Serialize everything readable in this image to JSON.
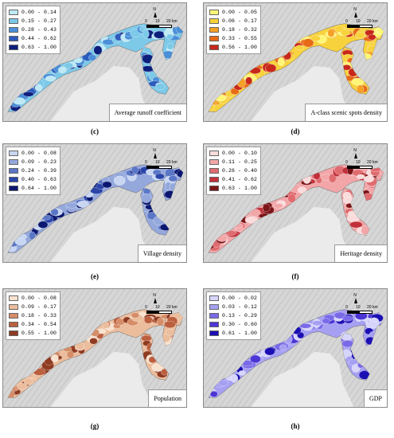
{
  "panels": [
    {
      "id": "c",
      "tag": "(c)",
      "variable": "Average runoff coefficient",
      "colors": {
        "ramp": [
          "#bfe9f4",
          "#7cc9e8",
          "#4a8fd8",
          "#2c5bbd",
          "#0d1f7c"
        ]
      },
      "legend": [
        "0.00 - 0.14",
        "0.15 - 0.27",
        "0.28 - 0.43",
        "0.44 - 0.62",
        "0.63 - 1.00"
      ]
    },
    {
      "id": "d",
      "tag": "(d)",
      "variable": "A-class scenic spots density",
      "colors": {
        "ramp": [
          "#fff678",
          "#f8d23c",
          "#f4a126",
          "#e86a17",
          "#c8281a"
        ]
      },
      "legend": [
        "0.00 - 0.05",
        "0.06 - 0.17",
        "0.18 - 0.32",
        "0.33 - 0.55",
        "0.56 - 1.00"
      ]
    },
    {
      "id": "e",
      "tag": "(e)",
      "variable": "Village density",
      "colors": {
        "ramp": [
          "#c9d6f2",
          "#94a8dc",
          "#5a76c6",
          "#2a44a8",
          "#0b1770"
        ]
      },
      "legend": [
        "0.00 - 0.08",
        "0.09 - 0.23",
        "0.24 - 0.39",
        "0.40 - 0.63",
        "0.64 - 1.00"
      ]
    },
    {
      "id": "f",
      "tag": "(f)",
      "variable": "Heritage density",
      "colors": {
        "ramp": [
          "#fadcdc",
          "#f2a6a8",
          "#e06b6f",
          "#c2313a",
          "#7c1518"
        ]
      },
      "legend": [
        "0.00 - 0.10",
        "0.11 - 0.25",
        "0.26 - 0.40",
        "0.41 - 0.62",
        "0.63 - 1.00"
      ]
    },
    {
      "id": "g",
      "tag": "(g)",
      "variable": "Population",
      "colors": {
        "ramp": [
          "#f8e2cf",
          "#ebbd9c",
          "#d68d67",
          "#bb5f3e",
          "#8f3b22"
        ]
      },
      "legend": [
        "0.00 - 0.08",
        "0.09 - 0.17",
        "0.18 - 0.33",
        "0.34 - 0.54",
        "0.55 - 1.00"
      ]
    },
    {
      "id": "h",
      "tag": "(h)",
      "variable": "GDP",
      "colors": {
        "ramp": [
          "#d7d5fa",
          "#a6a0f2",
          "#7a6ae8",
          "#4b35d4",
          "#1b0fb3"
        ]
      },
      "legend": [
        "0.00 - 0.02",
        "0.03 - 0.12",
        "0.13 - 0.29",
        "0.30 - 0.60",
        "0.61 - 1.00"
      ]
    }
  ],
  "scale": {
    "north": "N",
    "ticks": [
      "0",
      "10",
      "20 km"
    ]
  }
}
